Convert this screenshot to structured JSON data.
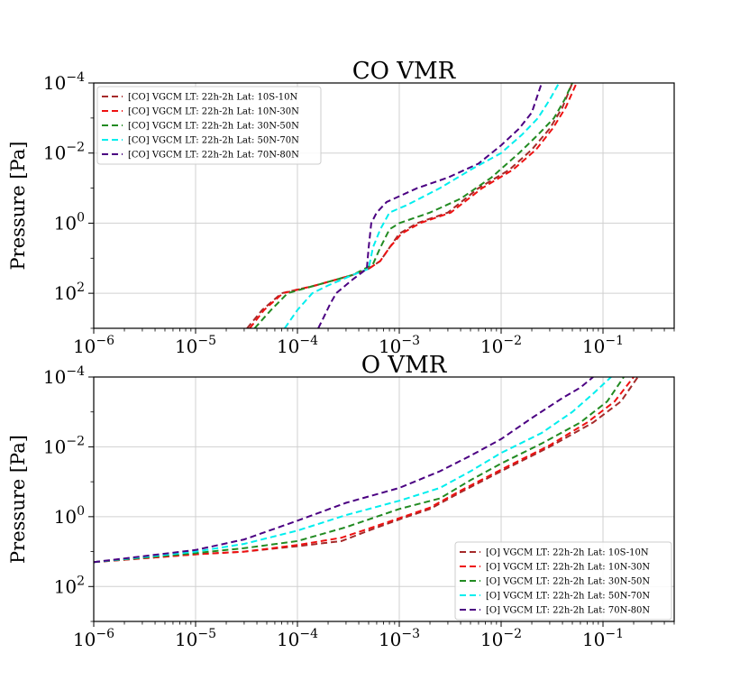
{
  "chart_data": [
    {
      "type": "line",
      "title": "CO VMR",
      "xlabel": "",
      "ylabel": "Pressure [Pa]",
      "xscale": "log",
      "yscale": "log",
      "y_inverted": true,
      "xlim": [
        1e-06,
        0.5
      ],
      "ylim": [
        1000,
        0.0001
      ],
      "xticks": [
        {
          "base": "10",
          "exp": "−6"
        },
        {
          "base": "10",
          "exp": "−5"
        },
        {
          "base": "10",
          "exp": "−4"
        },
        {
          "base": "10",
          "exp": "−3"
        },
        {
          "base": "10",
          "exp": "−2"
        },
        {
          "base": "10",
          "exp": "−1"
        }
      ],
      "yticks": [
        {
          "base": "10",
          "exp": "−4"
        },
        {
          "base": "10",
          "exp": "−2"
        },
        {
          "base": "10",
          "exp": "0"
        },
        {
          "base": "10",
          "exp": "2"
        }
      ],
      "legend_position": "top-left",
      "series": [
        {
          "name": "[CO] VGCM LT: 22h-2h Lat: 10S-10N",
          "color": "#a52a2a",
          "points": [
            [
              3.2e-05,
              1000
            ],
            [
              4.5e-05,
              300
            ],
            [
              7e-05,
              100
            ],
            [
              0.00015,
              60
            ],
            [
              0.00035,
              30
            ],
            [
              0.0005,
              20
            ],
            [
              0.00065,
              12
            ],
            [
              0.0008,
              5
            ],
            [
              0.001,
              2
            ],
            [
              0.0015,
              1
            ],
            [
              0.003,
              0.5
            ],
            [
              0.006,
              0.1
            ],
            [
              0.012,
              0.03
            ],
            [
              0.02,
              0.008
            ],
            [
              0.03,
              0.002
            ],
            [
              0.04,
              0.0005
            ],
            [
              0.05,
              0.0001
            ]
          ]
        },
        {
          "name": "[CO] VGCM LT: 22h-2h Lat: 10N-30N",
          "color": "#ee1111",
          "points": [
            [
              3.4e-05,
              1000
            ],
            [
              4.7e-05,
              300
            ],
            [
              7.2e-05,
              100
            ],
            [
              0.00015,
              60
            ],
            [
              0.00035,
              30
            ],
            [
              0.0005,
              20
            ],
            [
              0.00065,
              12
            ],
            [
              0.0008,
              5
            ],
            [
              0.00105,
              2
            ],
            [
              0.0016,
              1
            ],
            [
              0.0032,
              0.5
            ],
            [
              0.0065,
              0.1
            ],
            [
              0.013,
              0.03
            ],
            [
              0.022,
              0.008
            ],
            [
              0.032,
              0.002
            ],
            [
              0.043,
              0.0005
            ],
            [
              0.055,
              0.0001
            ]
          ]
        },
        {
          "name": "[CO] VGCM LT: 22h-2h Lat: 30N-50N",
          "color": "#228b22",
          "points": [
            [
              3.8e-05,
              1000
            ],
            [
              5.5e-05,
              300
            ],
            [
              8e-05,
              100
            ],
            [
              0.00015,
              60
            ],
            [
              0.00035,
              30
            ],
            [
              0.00055,
              15
            ],
            [
              0.00065,
              5
            ],
            [
              0.0008,
              1.5
            ],
            [
              0.001,
              1
            ],
            [
              0.002,
              0.5
            ],
            [
              0.004,
              0.2
            ],
            [
              0.008,
              0.05
            ],
            [
              0.015,
              0.01
            ],
            [
              0.023,
              0.003
            ],
            [
              0.033,
              0.001
            ],
            [
              0.042,
              0.0003
            ],
            [
              0.05,
              0.0001
            ]
          ]
        },
        {
          "name": "[CO] VGCM LT: 22h-2h Lat: 50N-70N",
          "color": "#00eeee",
          "points": [
            [
              7.5e-05,
              1000
            ],
            [
              0.0001,
              300
            ],
            [
              0.00014,
              100
            ],
            [
              0.0002,
              60
            ],
            [
              0.00035,
              30
            ],
            [
              0.0005,
              20
            ],
            [
              0.00055,
              5
            ],
            [
              0.00065,
              1.5
            ],
            [
              0.0008,
              0.5
            ],
            [
              0.0012,
              0.3
            ],
            [
              0.0025,
              0.1
            ],
            [
              0.005,
              0.03
            ],
            [
              0.01,
              0.01
            ],
            [
              0.016,
              0.003
            ],
            [
              0.023,
              0.001
            ],
            [
              0.03,
              0.0003
            ],
            [
              0.037,
              0.0001
            ]
          ]
        },
        {
          "name": "[CO] VGCM LT: 22h-2h Lat: 70N-80N",
          "color": "#4b0082",
          "points": [
            [
              0.00016,
              1000
            ],
            [
              0.00018,
              500
            ],
            [
              0.00021,
              200
            ],
            [
              0.00024,
              100
            ],
            [
              0.00035,
              40
            ],
            [
              0.00048,
              20
            ],
            [
              0.0005,
              5
            ],
            [
              0.00053,
              1
            ],
            [
              0.0006,
              0.5
            ],
            [
              0.00075,
              0.25
            ],
            [
              0.0015,
              0.1
            ],
            [
              0.003,
              0.05
            ],
            [
              0.006,
              0.02
            ],
            [
              0.01,
              0.006
            ],
            [
              0.015,
              0.002
            ],
            [
              0.02,
              0.0007
            ],
            [
              0.025,
              0.0001
            ]
          ]
        }
      ]
    },
    {
      "type": "line",
      "title": "O VMR",
      "xlabel": "",
      "ylabel": "Pressure [Pa]",
      "xscale": "log",
      "yscale": "log",
      "y_inverted": true,
      "xlim": [
        1e-06,
        0.5
      ],
      "ylim": [
        1000,
        0.0001
      ],
      "xticks": [
        {
          "base": "10",
          "exp": "−6"
        },
        {
          "base": "10",
          "exp": "−5"
        },
        {
          "base": "10",
          "exp": "−4"
        },
        {
          "base": "10",
          "exp": "−3"
        },
        {
          "base": "10",
          "exp": "−2"
        },
        {
          "base": "10",
          "exp": "−1"
        }
      ],
      "yticks": [
        {
          "base": "10",
          "exp": "−4"
        },
        {
          "base": "10",
          "exp": "−2"
        },
        {
          "base": "10",
          "exp": "0"
        },
        {
          "base": "10",
          "exp": "2"
        }
      ],
      "legend_position": "lower-right",
      "series": [
        {
          "name": "[O] VGCM LT: 22h-2h Lat: 10S-10N",
          "color": "#a52a2a",
          "points": [
            [
              1e-06,
              20
            ],
            [
              1e-05,
              12
            ],
            [
              3e-05,
              10
            ],
            [
              0.0001,
              7
            ],
            [
              0.00027,
              5
            ],
            [
              0.0005,
              2.5
            ],
            [
              0.001,
              1.2
            ],
            [
              0.002,
              0.6
            ],
            [
              0.004,
              0.2
            ],
            [
              0.01,
              0.05
            ],
            [
              0.03,
              0.01
            ],
            [
              0.08,
              0.002
            ],
            [
              0.15,
              0.0005
            ],
            [
              0.22,
              0.0001
            ]
          ]
        },
        {
          "name": "[O] VGCM LT: 22h-2h Lat: 10N-30N",
          "color": "#ee1111",
          "points": [
            [
              1e-06,
              20
            ],
            [
              1e-05,
              12
            ],
            [
              3e-05,
              10
            ],
            [
              0.0001,
              6.5
            ],
            [
              0.00027,
              4
            ],
            [
              0.0005,
              2.2
            ],
            [
              0.001,
              1.1
            ],
            [
              0.002,
              0.55
            ],
            [
              0.004,
              0.18
            ],
            [
              0.01,
              0.045
            ],
            [
              0.03,
              0.009
            ],
            [
              0.07,
              0.002
            ],
            [
              0.13,
              0.0005
            ],
            [
              0.2,
              0.0001
            ]
          ]
        },
        {
          "name": "[O] VGCM LT: 22h-2h Lat: 30N-50N",
          "color": "#228b22",
          "points": [
            [
              1e-06,
              20
            ],
            [
              1e-05,
              11
            ],
            [
              3e-05,
              8
            ],
            [
              0.0001,
              5
            ],
            [
              0.0003,
              2
            ],
            [
              0.001,
              0.6
            ],
            [
              0.0025,
              0.3
            ],
            [
              0.005,
              0.09
            ],
            [
              0.01,
              0.03
            ],
            [
              0.025,
              0.008
            ],
            [
              0.06,
              0.002
            ],
            [
              0.11,
              0.0005
            ],
            [
              0.16,
              0.0001
            ]
          ]
        },
        {
          "name": "[O] VGCM LT: 22h-2h Lat: 50N-70N",
          "color": "#00eeee",
          "points": [
            [
              1e-06,
              20
            ],
            [
              1e-05,
              10
            ],
            [
              3e-05,
              6
            ],
            [
              0.0001,
              2.5
            ],
            [
              0.0003,
              0.9
            ],
            [
              0.001,
              0.35
            ],
            [
              0.0025,
              0.15
            ],
            [
              0.005,
              0.05
            ],
            [
              0.01,
              0.015
            ],
            [
              0.025,
              0.004
            ],
            [
              0.05,
              0.001
            ],
            [
              0.08,
              0.0003
            ],
            [
              0.12,
              0.0001
            ]
          ]
        },
        {
          "name": "[O] VGCM LT: 22h-2h Lat: 70N-80N",
          "color": "#4b0082",
          "points": [
            [
              1e-06,
              20
            ],
            [
              1e-05,
              9
            ],
            [
              3e-05,
              4.5
            ],
            [
              0.0001,
              1.3
            ],
            [
              0.0003,
              0.4
            ],
            [
              0.001,
              0.15
            ],
            [
              0.0025,
              0.05
            ],
            [
              0.005,
              0.018
            ],
            [
              0.01,
              0.006
            ],
            [
              0.02,
              0.0015
            ],
            [
              0.04,
              0.0004
            ],
            [
              0.06,
              0.0002
            ],
            [
              0.08,
              0.0001
            ]
          ]
        }
      ]
    }
  ]
}
